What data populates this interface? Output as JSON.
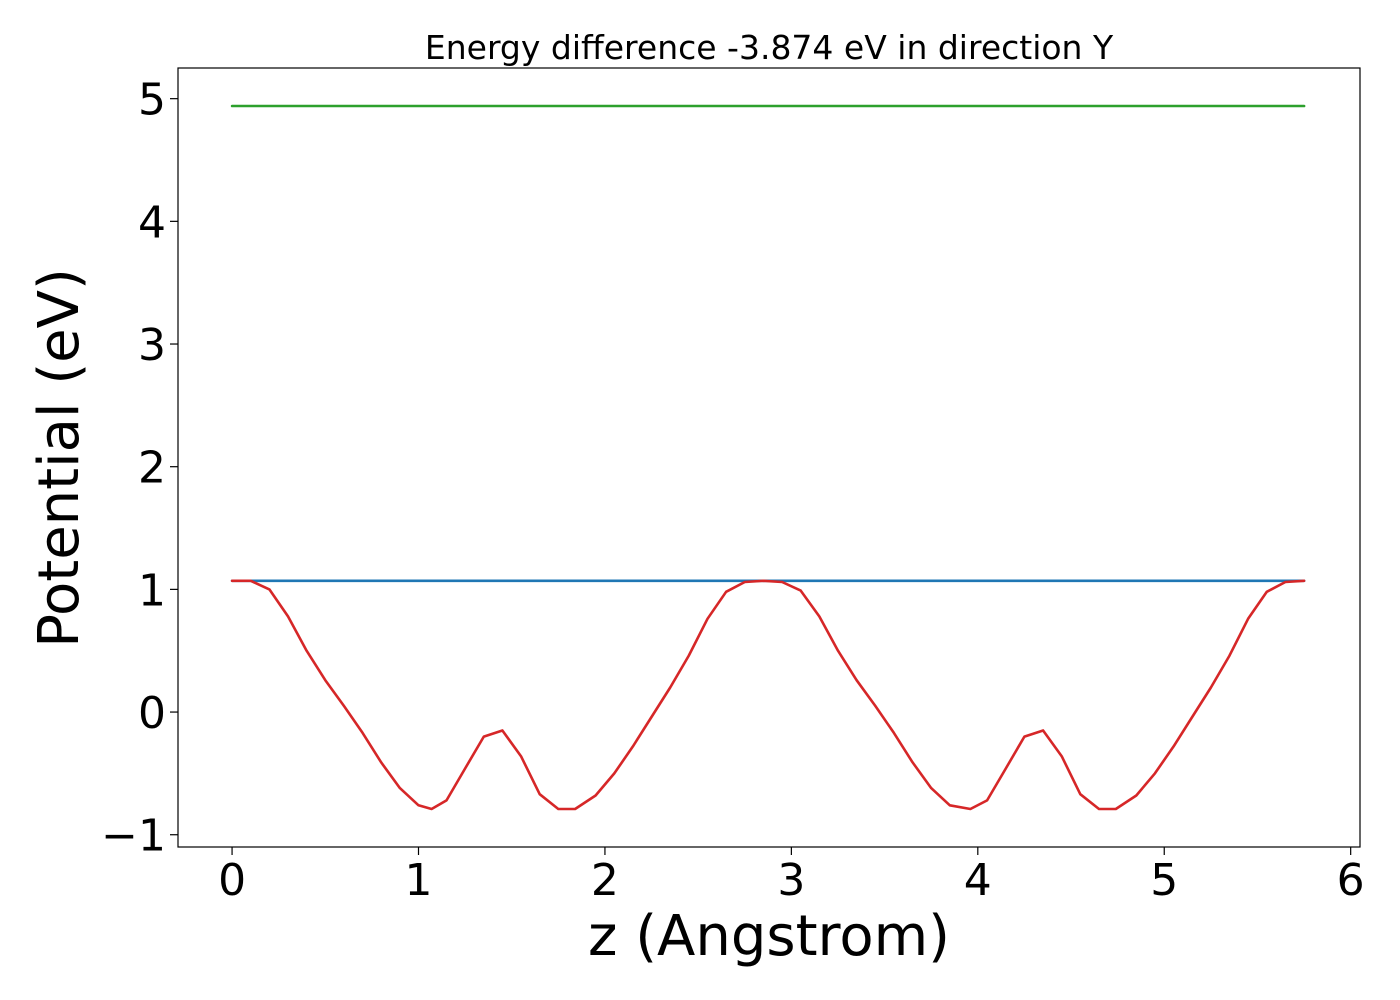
{
  "chart_data": {
    "type": "line",
    "title": "Energy difference -3.874 eV in direction Y",
    "xlabel": "z (Angstrom)",
    "ylabel": "Potential (eV)",
    "xlim": [
      -0.29,
      6.05
    ],
    "ylim": [
      -1.1,
      5.25
    ],
    "xticks": [
      0,
      1,
      2,
      3,
      4,
      5,
      6
    ],
    "xtick_labels": [
      "0",
      "1",
      "2",
      "3",
      "4",
      "5",
      "6"
    ],
    "yticks": [
      -1,
      0,
      1,
      2,
      3,
      4,
      5
    ],
    "ytick_labels": [
      "−1",
      "0",
      "1",
      "2",
      "3",
      "4",
      "5"
    ],
    "grid": false,
    "series": [
      {
        "color": "#d62728",
        "x": [
          0,
          0.1,
          0.2,
          0.3,
          0.4,
          0.5,
          0.6,
          0.7,
          0.8,
          0.9,
          1.0,
          1.07,
          1.15,
          1.25,
          1.35,
          1.45,
          1.55,
          1.65,
          1.75,
          1.84,
          1.95,
          2.05,
          2.15,
          2.25,
          2.35,
          2.45,
          2.55,
          2.65,
          2.75,
          2.85,
          2.95,
          3.05,
          3.15,
          3.25,
          3.35,
          3.45,
          3.55,
          3.65,
          3.75,
          3.85,
          3.96,
          4.05,
          4.15,
          4.25,
          4.35,
          4.45,
          4.55,
          4.65,
          4.74,
          4.85,
          4.95,
          5.05,
          5.15,
          5.25,
          5.35,
          5.45,
          5.55,
          5.65,
          5.75
        ],
        "y": [
          1.07,
          1.07,
          1.0,
          0.78,
          0.5,
          0.26,
          0.05,
          -0.17,
          -0.41,
          -0.62,
          -0.76,
          -0.79,
          -0.72,
          -0.46,
          -0.2,
          -0.15,
          -0.36,
          -0.67,
          -0.79,
          -0.79,
          -0.68,
          -0.5,
          -0.28,
          -0.04,
          0.2,
          0.46,
          0.76,
          0.98,
          1.06,
          1.07,
          1.06,
          0.99,
          0.78,
          0.5,
          0.26,
          0.05,
          -0.17,
          -0.41,
          -0.62,
          -0.76,
          -0.79,
          -0.72,
          -0.46,
          -0.2,
          -0.15,
          -0.36,
          -0.67,
          -0.79,
          -0.79,
          -0.68,
          -0.5,
          -0.28,
          -0.04,
          0.2,
          0.46,
          0.76,
          0.98,
          1.06,
          1.07
        ]
      },
      {
        "color": "#1f77b4",
        "x": [
          0,
          5.75
        ],
        "y": [
          1.07,
          1.07
        ]
      },
      {
        "color": "#2ca02c",
        "x": [
          0,
          5.75
        ],
        "y": [
          4.94,
          4.94
        ]
      }
    ]
  }
}
